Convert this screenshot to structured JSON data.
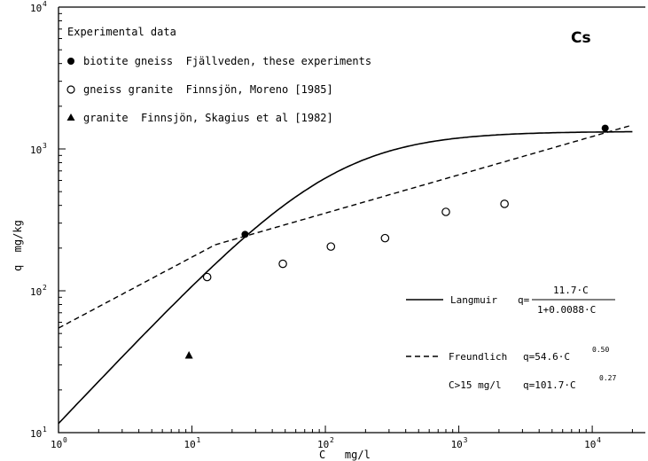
{
  "chart_data": {
    "type": "scatter",
    "title": "Cs",
    "xlabel": "C   mg/l",
    "ylabel": "q  mg/kg",
    "xscale": "log",
    "yscale": "log",
    "xlim": [
      1,
      25000
    ],
    "ylim": [
      10,
      10000
    ],
    "x_ticks": [
      {
        "base": "10",
        "exp": "0",
        "value": 1
      },
      {
        "base": "10",
        "exp": "1",
        "value": 10
      },
      {
        "base": "10",
        "exp": "2",
        "value": 100
      },
      {
        "base": "10",
        "exp": "3",
        "value": 1000
      },
      {
        "base": "10",
        "exp": "4",
        "value": 10000
      }
    ],
    "y_ticks": [
      {
        "base": "10",
        "exp": "1",
        "value": 10
      },
      {
        "base": "10",
        "exp": "2",
        "value": 100
      },
      {
        "base": "10",
        "exp": "3",
        "value": 1000
      },
      {
        "base": "10",
        "exp": "4",
        "value": 10000
      }
    ],
    "legend_title": "Experimental data",
    "legend_position": "top-left",
    "series": [
      {
        "name": "biotite gneiss  Fjällveden, these experiments",
        "marker": "filled-circle",
        "x": [
          25,
          12500
        ],
        "y": [
          250,
          1400
        ]
      },
      {
        "name": "gneiss granite  Finnsjön, Moreno [1985]",
        "marker": "open-circle",
        "x": [
          13,
          48,
          110,
          280,
          800,
          2200
        ],
        "y": [
          125,
          155,
          205,
          235,
          360,
          410
        ]
      },
      {
        "name": "granite  Finnsjön, Skagius et al [1982]",
        "marker": "filled-triangle",
        "x": [
          9.5
        ],
        "y": [
          35
        ]
      }
    ],
    "fits": [
      {
        "name": "Langmuir",
        "style": "solid",
        "eq_prefix": "q=",
        "numerator": "11.7·C",
        "denominator": "1+0.0088·C",
        "formula": {
          "type": "langmuir",
          "a": 11.7,
          "b": 0.0088
        }
      },
      {
        "name": "Freundlich",
        "style": "dashed",
        "eq_base": "q=54.6·C",
        "eq_exp": "0.50",
        "condition": "C>15 mg/l",
        "eq2_base": "q=101.7·C",
        "eq2_exp": "0.27",
        "formula": {
          "type": "freundlich",
          "a1": 54.6,
          "n1": 0.5,
          "a2": 101.7,
          "n2": 0.27,
          "x_break": 15
        }
      }
    ]
  }
}
